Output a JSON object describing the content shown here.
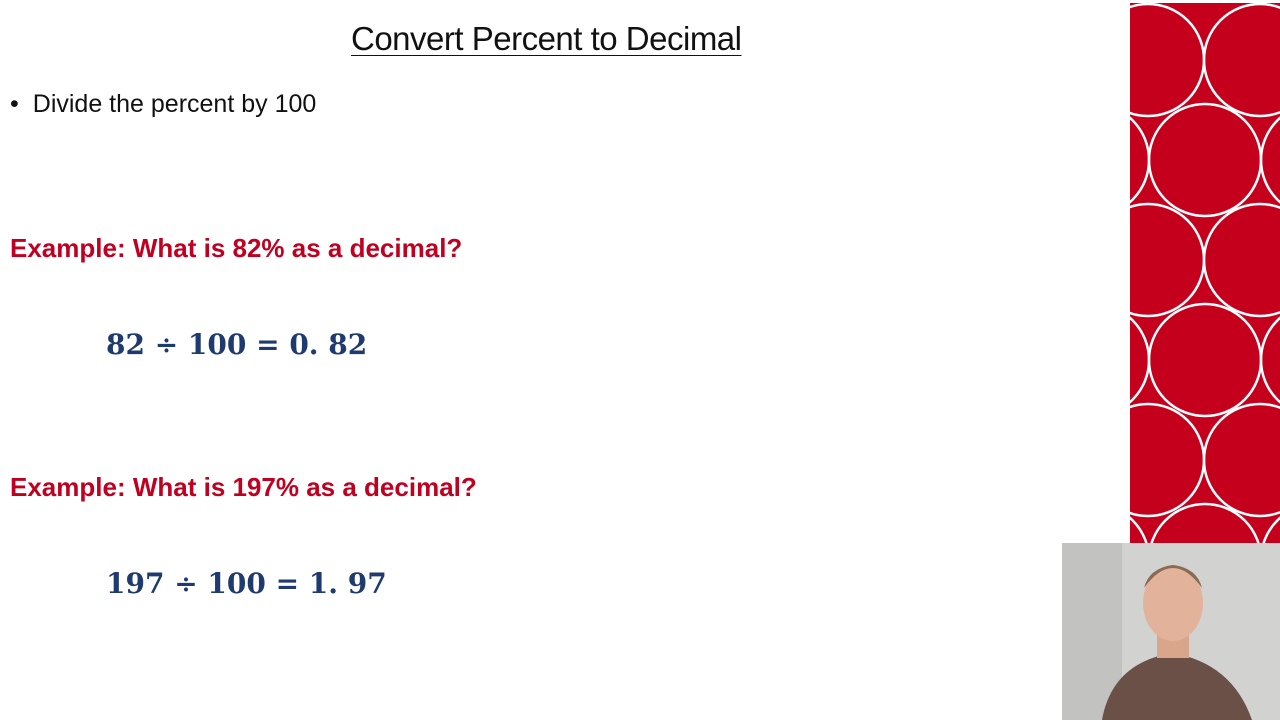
{
  "slide": {
    "title": "Convert Percent to Decimal",
    "bullet": "Divide the percent by 100",
    "examples": [
      {
        "question": "Example: What is 82% as a decimal?",
        "equation": "82 ÷ 100 = 0. 82"
      },
      {
        "question": "Example: What is 197% as a decimal?",
        "equation": "197 ÷ 100 = 1. 97"
      }
    ]
  },
  "colors": {
    "accent_red": "#c00020",
    "equation_blue": "#1f3a6e",
    "band_red": "#c4001d"
  }
}
